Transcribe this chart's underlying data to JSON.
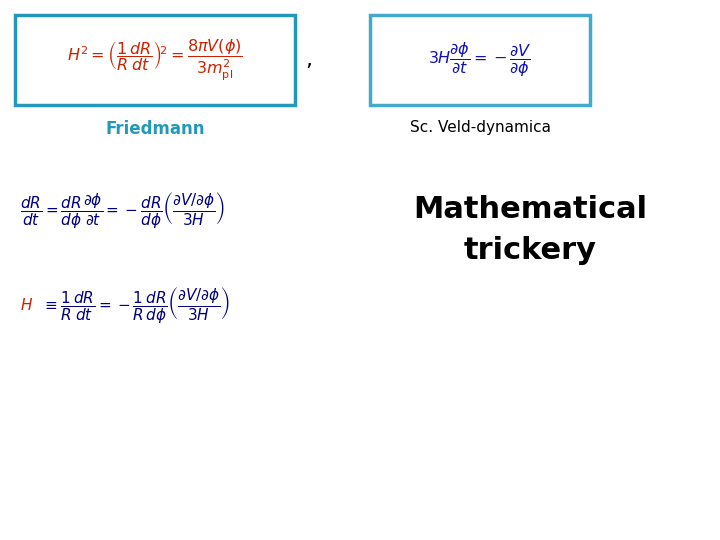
{
  "bg_color": "#ffffff",
  "friedmann_eq_color": "#cc2200",
  "friedmann_box_color": "#2299bb",
  "friedmann_label": "Friedmann",
  "friedmann_label_color": "#2299bb",
  "comma_color": "#000000",
  "scalar_eq_color": "#1111bb",
  "scalar_box_color": "#44aacc",
  "scalar_label": "Sc. Veld-dynamica",
  "scalar_label_color": "#000000",
  "deriv_eq1_color": "#000080",
  "deriv_phi_color": "#1111bb",
  "deriv_eq2_H_color": "#cc2200",
  "deriv_eq2_color": "#000080",
  "math_trickery_color": "#000000",
  "math_trickery_fontsize": 22
}
